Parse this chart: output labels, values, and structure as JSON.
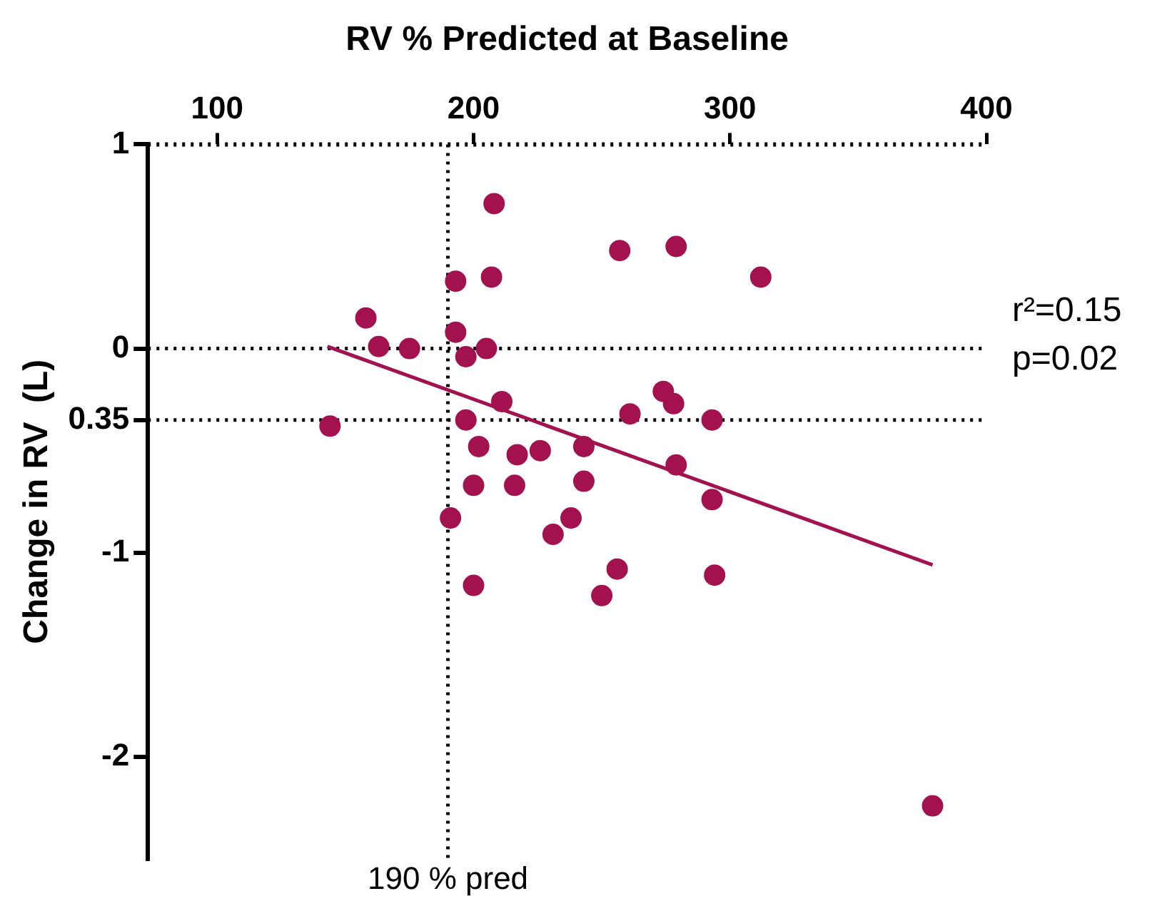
{
  "chart_data": {
    "type": "scatter",
    "xlabel": "RV % Predicted at Baseline",
    "ylabel": "Change in RV  (L)",
    "xlim": [
      73,
      400
    ],
    "xticks": [
      100,
      200,
      300,
      400
    ],
    "ylim": [
      -2.5,
      1
    ],
    "yticks": [
      1,
      0,
      {
        "value": -0.35,
        "label": "0.35"
      },
      -1,
      -2
    ],
    "grid": false,
    "legend": false,
    "marker": "circle",
    "series": [
      {
        "color": "#a3124f",
        "x": [
          144,
          158,
          163,
          175,
          191,
          193,
          193,
          197,
          197,
          200,
          200,
          202,
          205,
          207,
          208,
          211,
          217,
          216,
          226,
          231,
          238,
          243,
          243,
          250,
          256,
          257,
          261,
          274,
          278,
          279,
          279,
          293,
          293,
          294,
          312,
          379
        ],
        "values": [
          -0.38,
          0.15,
          0.01,
          0.0,
          -0.83,
          0.33,
          0.08,
          -0.04,
          -0.35,
          -1.16,
          -0.67,
          -0.48,
          0.0,
          0.35,
          0.71,
          -0.26,
          -0.52,
          -0.67,
          -0.5,
          -0.91,
          -0.83,
          -0.48,
          -0.65,
          -1.21,
          -1.08,
          0.48,
          -0.32,
          -0.21,
          -0.27,
          0.5,
          -0.57,
          -0.35,
          -0.74,
          -1.11,
          0.35,
          -2.24
        ]
      },
      {
        "type": "line",
        "color": "#a3124f",
        "marker": "none",
        "line_style": "solid",
        "x": [
          143,
          379
        ],
        "values": [
          0.01,
          -1.06
        ]
      }
    ],
    "ref_lines": [
      {
        "axis": "x",
        "value": 190,
        "label": "190 % pred",
        "line_style": "dotted",
        "color": "#000000"
      },
      {
        "axis": "y",
        "value": 0,
        "line_style": "dotted",
        "color": "#000000"
      },
      {
        "axis": "y",
        "value": -0.35,
        "line_style": "dotted",
        "color": "#000000"
      }
    ],
    "annotations": [
      "r²=0.15",
      "p=0.02"
    ]
  }
}
